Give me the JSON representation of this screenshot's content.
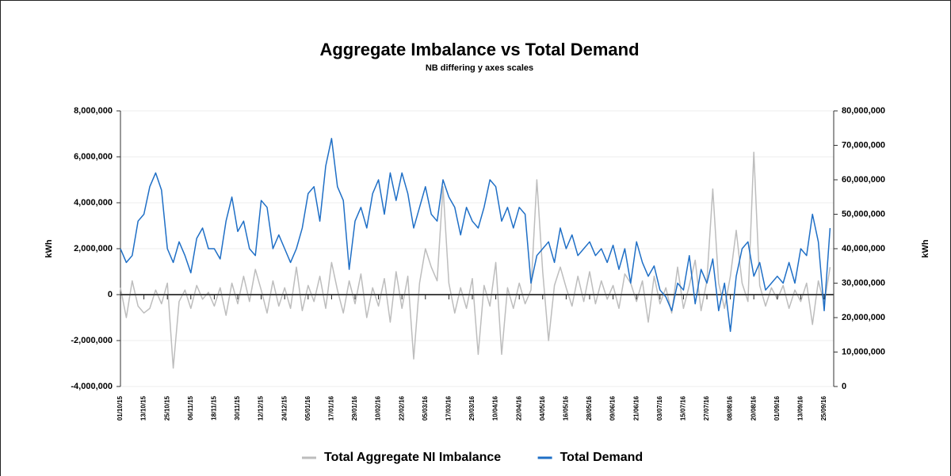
{
  "chart_data": {
    "type": "line",
    "title": "Aggregate Imbalance vs Total Demand",
    "subtitle": "NB differing y axes scales",
    "ylabel": "kWh",
    "y2label": "kWh",
    "categories": [
      "01/10/15",
      null,
      null,
      null,
      "13/10/15",
      null,
      null,
      null,
      "25/10/15",
      null,
      null,
      null,
      "06/11/15",
      null,
      null,
      null,
      "18/11/15",
      null,
      null,
      null,
      "30/11/15",
      null,
      null,
      null,
      "12/12/15",
      null,
      null,
      null,
      "24/12/15",
      null,
      null,
      null,
      "05/01/16",
      null,
      null,
      null,
      "17/01/16",
      null,
      null,
      null,
      "29/01/16",
      null,
      null,
      null,
      "10/02/16",
      null,
      null,
      null,
      "22/02/16",
      null,
      null,
      null,
      "05/03/16",
      null,
      null,
      null,
      "17/03/16",
      null,
      null,
      null,
      "29/03/16",
      null,
      null,
      null,
      "10/04/16",
      null,
      null,
      null,
      "22/04/16",
      null,
      null,
      null,
      "04/05/16",
      null,
      null,
      null,
      "16/05/16",
      null,
      null,
      null,
      "28/05/16",
      null,
      null,
      null,
      "09/06/16",
      null,
      null,
      null,
      "21/06/16",
      null,
      null,
      null,
      "03/07/16",
      null,
      null,
      null,
      "15/07/16",
      null,
      null,
      null,
      "27/07/16",
      null,
      null,
      null,
      "08/08/16",
      null,
      null,
      null,
      "20/08/16",
      null,
      null,
      null,
      "01/09/16",
      null,
      null,
      null,
      "13/09/16",
      null,
      null,
      null,
      "25/09/16",
      null
    ],
    "series": [
      {
        "name": "Total Aggregate NI Imbalance",
        "color": "#bdbdbd",
        "axis": "y",
        "values": [
          300000,
          -1000000,
          600000,
          -500000,
          -800000,
          -600000,
          200000,
          -400000,
          500000,
          -3200000,
          -300000,
          200000,
          -600000,
          400000,
          -200000,
          100000,
          -500000,
          300000,
          -900000,
          500000,
          -400000,
          800000,
          -300000,
          1100000,
          200000,
          -800000,
          600000,
          -500000,
          300000,
          -600000,
          1200000,
          -700000,
          400000,
          -300000,
          800000,
          -600000,
          1400000,
          200000,
          -800000,
          600000,
          -400000,
          900000,
          -1000000,
          300000,
          -500000,
          700000,
          -1200000,
          1000000,
          -600000,
          800000,
          -2800000,
          500000,
          2000000,
          1200000,
          600000,
          4700000,
          500000,
          -800000,
          300000,
          -600000,
          700000,
          -2600000,
          400000,
          -500000,
          1400000,
          -2600000,
          300000,
          -600000,
          500000,
          -400000,
          200000,
          5000000,
          1000000,
          -2000000,
          400000,
          1200000,
          300000,
          -500000,
          800000,
          -300000,
          1000000,
          -400000,
          600000,
          -200000,
          400000,
          -600000,
          900000,
          500000,
          -300000,
          600000,
          -1200000,
          800000,
          -400000,
          300000,
          -800000,
          1200000,
          -600000,
          400000,
          1500000,
          -700000,
          600000,
          4600000,
          500000,
          -600000,
          800000,
          2800000,
          500000,
          -300000,
          6200000,
          400000,
          -500000,
          300000,
          -200000,
          400000,
          -600000,
          200000,
          -300000,
          500000,
          -1300000,
          600000,
          -400000,
          1200000
        ]
      },
      {
        "name": "Total Demand",
        "color": "#1f6fc6",
        "axis": "y2",
        "values": [
          40000000,
          36000000,
          38000000,
          48000000,
          50000000,
          58000000,
          62000000,
          57000000,
          40000000,
          36000000,
          42000000,
          38000000,
          33000000,
          43000000,
          46000000,
          40000000,
          40000000,
          37000000,
          48000000,
          55000000,
          45000000,
          48000000,
          40000000,
          38000000,
          54000000,
          52000000,
          40000000,
          44000000,
          40000000,
          36000000,
          40000000,
          46000000,
          56000000,
          58000000,
          48000000,
          64000000,
          72000000,
          58000000,
          54000000,
          34000000,
          48000000,
          52000000,
          46000000,
          56000000,
          60000000,
          50000000,
          62000000,
          54000000,
          62000000,
          56000000,
          46000000,
          52000000,
          58000000,
          50000000,
          48000000,
          60000000,
          55000000,
          52000000,
          44000000,
          52000000,
          48000000,
          46000000,
          52000000,
          60000000,
          58000000,
          48000000,
          52000000,
          46000000,
          52000000,
          50000000,
          30000000,
          38000000,
          40000000,
          42000000,
          36000000,
          46000000,
          40000000,
          44000000,
          38000000,
          40000000,
          42000000,
          38000000,
          40000000,
          36000000,
          41000000,
          34000000,
          40000000,
          30000000,
          42000000,
          36000000,
          32000000,
          35000000,
          28000000,
          26000000,
          22000000,
          30000000,
          28000000,
          38000000,
          24000000,
          34000000,
          30000000,
          37000000,
          22000000,
          30000000,
          16000000,
          32000000,
          40000000,
          42000000,
          32000000,
          36000000,
          28000000,
          30000000,
          32000000,
          30000000,
          36000000,
          30000000,
          40000000,
          38000000,
          50000000,
          42000000,
          22000000,
          46000000
        ]
      }
    ],
    "ylim": [
      -4000000,
      8000000
    ],
    "yticks": [
      {
        "value": -4000000,
        "label": "-4,000,000"
      },
      {
        "value": -2000000,
        "label": "-2,000,000"
      },
      {
        "value": 0,
        "label": "0"
      },
      {
        "value": 2000000,
        "label": "2,000,000"
      },
      {
        "value": 4000000,
        "label": "4,000,000"
      },
      {
        "value": 6000000,
        "label": "6,000,000"
      },
      {
        "value": 8000000,
        "label": "8,000,000"
      }
    ],
    "y2lim": [
      0,
      80000000
    ],
    "y2ticks": [
      {
        "value": 0,
        "label": "0"
      },
      {
        "value": 10000000,
        "label": "10,000,000"
      },
      {
        "value": 20000000,
        "label": "20,000,000"
      },
      {
        "value": 30000000,
        "label": "30,000,000"
      },
      {
        "value": 40000000,
        "label": "40,000,000"
      },
      {
        "value": 50000000,
        "label": "50,000,000"
      },
      {
        "value": 60000000,
        "label": "60,000,000"
      },
      {
        "value": 70000000,
        "label": "70,000,000"
      },
      {
        "value": 80000000,
        "label": "80,000,000"
      }
    ],
    "grid": true,
    "legend": "bottom"
  }
}
